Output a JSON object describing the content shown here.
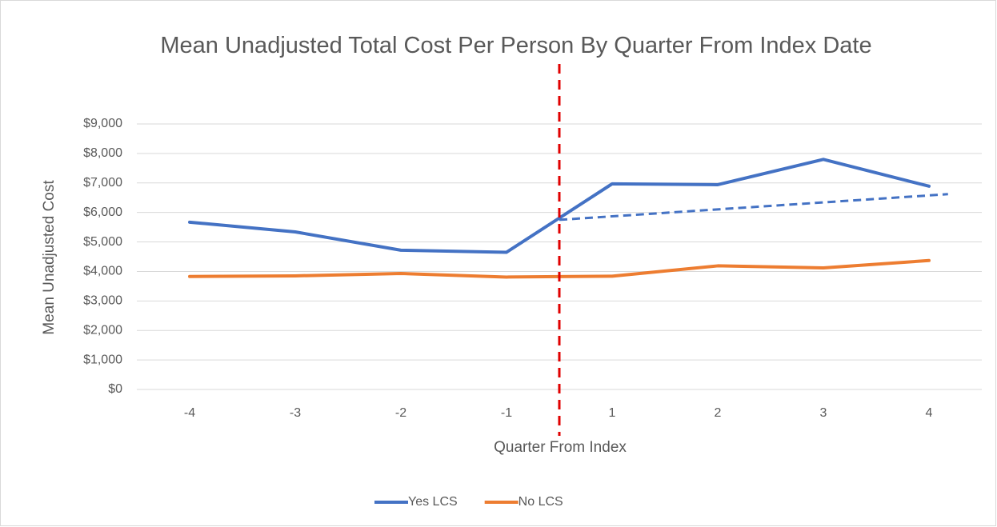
{
  "chart_data": {
    "type": "line",
    "title": "Mean Unadjusted Total Cost Per Person By Quarter From Index Date",
    "xlabel": "Quarter From Index",
    "ylabel": "Mean Unadjusted Cost",
    "categories": [
      "-4",
      "-3",
      "-2",
      "-1",
      "1",
      "2",
      "3",
      "4"
    ],
    "series": [
      {
        "name": "Yes LCS",
        "color": "#4472c4",
        "values": [
          5670,
          5340,
          4720,
          4650,
          6970,
          6940,
          7800,
          6890
        ]
      },
      {
        "name": "No LCS",
        "color": "#ed7d31",
        "values": [
          3830,
          3850,
          3930,
          3810,
          3840,
          4190,
          4120,
          4370
        ]
      }
    ],
    "trend": {
      "color": "#4472c4",
      "values": [
        5750,
        6620
      ]
    },
    "index_line_color": "#e00000",
    "ylim": [
      0,
      9000
    ],
    "yticks": [
      {
        "value": 0,
        "label": "$0"
      },
      {
        "value": 1000,
        "label": "$1,000"
      },
      {
        "value": 2000,
        "label": "$2,000"
      },
      {
        "value": 3000,
        "label": "$3,000"
      },
      {
        "value": 4000,
        "label": "$4,000"
      },
      {
        "value": 5000,
        "label": "$5,000"
      },
      {
        "value": 6000,
        "label": "$6,000"
      },
      {
        "value": 7000,
        "label": "$7,000"
      },
      {
        "value": 8000,
        "label": "$8,000"
      },
      {
        "value": 9000,
        "label": "$9,000"
      }
    ],
    "grid": true,
    "legend": "bottom"
  }
}
